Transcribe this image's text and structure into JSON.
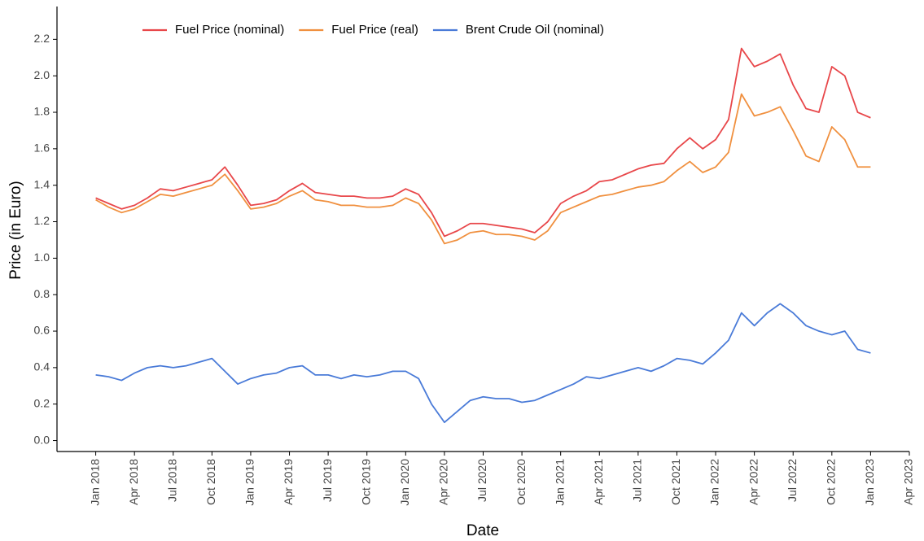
{
  "chart_data": {
    "type": "line",
    "x_label": "Date",
    "y_label": "Price (in Euro)",
    "x": [
      "2018-01",
      "2018-02",
      "2018-03",
      "2018-04",
      "2018-05",
      "2018-06",
      "2018-07",
      "2018-08",
      "2018-09",
      "2018-10",
      "2018-11",
      "2018-12",
      "2019-01",
      "2019-02",
      "2019-03",
      "2019-04",
      "2019-05",
      "2019-06",
      "2019-07",
      "2019-08",
      "2019-09",
      "2019-10",
      "2019-11",
      "2019-12",
      "2020-01",
      "2020-02",
      "2020-03",
      "2020-04",
      "2020-05",
      "2020-06",
      "2020-07",
      "2020-08",
      "2020-09",
      "2020-10",
      "2020-11",
      "2020-12",
      "2021-01",
      "2021-02",
      "2021-03",
      "2021-04",
      "2021-05",
      "2021-06",
      "2021-07",
      "2021-08",
      "2021-09",
      "2021-10",
      "2021-11",
      "2021-12",
      "2022-01",
      "2022-02",
      "2022-03",
      "2022-04",
      "2022-05",
      "2022-06",
      "2022-07",
      "2022-08",
      "2022-09",
      "2022-10",
      "2022-11",
      "2022-12",
      "2023-01"
    ],
    "series": [
      {
        "name": "Fuel Price (nominal)",
        "color": "#e8474a",
        "values": [
          1.33,
          1.3,
          1.27,
          1.29,
          1.33,
          1.38,
          1.37,
          1.39,
          1.41,
          1.43,
          1.5,
          1.4,
          1.29,
          1.3,
          1.32,
          1.37,
          1.41,
          1.36,
          1.35,
          1.34,
          1.34,
          1.33,
          1.33,
          1.34,
          1.38,
          1.35,
          1.25,
          1.12,
          1.15,
          1.19,
          1.19,
          1.18,
          1.17,
          1.16,
          1.14,
          1.2,
          1.3,
          1.34,
          1.37,
          1.42,
          1.43,
          1.46,
          1.49,
          1.51,
          1.52,
          1.6,
          1.66,
          1.6,
          1.65,
          1.76,
          2.15,
          2.05,
          2.08,
          2.12,
          1.95,
          1.82,
          1.8,
          2.05,
          2.0,
          1.8,
          1.77
        ]
      },
      {
        "name": "Fuel Price (real)",
        "color": "#f0903f",
        "values": [
          1.32,
          1.28,
          1.25,
          1.27,
          1.31,
          1.35,
          1.34,
          1.36,
          1.38,
          1.4,
          1.46,
          1.37,
          1.27,
          1.28,
          1.3,
          1.34,
          1.37,
          1.32,
          1.31,
          1.29,
          1.29,
          1.28,
          1.28,
          1.29,
          1.33,
          1.3,
          1.21,
          1.08,
          1.1,
          1.14,
          1.15,
          1.13,
          1.13,
          1.12,
          1.1,
          1.15,
          1.25,
          1.28,
          1.31,
          1.34,
          1.35,
          1.37,
          1.39,
          1.4,
          1.42,
          1.48,
          1.53,
          1.47,
          1.5,
          1.58,
          1.9,
          1.78,
          1.8,
          1.83,
          1.7,
          1.56,
          1.53,
          1.72,
          1.65,
          1.5,
          1.5
        ]
      },
      {
        "name": "Brent Crude Oil (nominal)",
        "color": "#4a7bd8",
        "values": [
          0.36,
          0.35,
          0.33,
          0.37,
          0.4,
          0.41,
          0.4,
          0.41,
          0.43,
          0.45,
          0.38,
          0.31,
          0.34,
          0.36,
          0.37,
          0.4,
          0.41,
          0.36,
          0.36,
          0.34,
          0.36,
          0.35,
          0.36,
          0.38,
          0.38,
          0.34,
          0.2,
          0.1,
          0.16,
          0.22,
          0.24,
          0.23,
          0.23,
          0.21,
          0.22,
          0.25,
          0.28,
          0.31,
          0.35,
          0.34,
          0.36,
          0.38,
          0.4,
          0.38,
          0.41,
          0.45,
          0.44,
          0.42,
          0.48,
          0.55,
          0.7,
          0.63,
          0.7,
          0.75,
          0.7,
          0.63,
          0.6,
          0.58,
          0.6,
          0.5,
          0.48
        ]
      }
    ],
    "xlim": [
      "2017-10",
      "2023-04"
    ],
    "xticks": [
      {
        "value": "2018-01",
        "label": "Jan 2018"
      },
      {
        "value": "2018-04",
        "label": "Apr 2018"
      },
      {
        "value": "2018-07",
        "label": "Jul 2018"
      },
      {
        "value": "2018-10",
        "label": "Oct 2018"
      },
      {
        "value": "2019-01",
        "label": "Jan 2019"
      },
      {
        "value": "2019-04",
        "label": "Apr 2019"
      },
      {
        "value": "2019-07",
        "label": "Jul 2019"
      },
      {
        "value": "2019-10",
        "label": "Oct 2019"
      },
      {
        "value": "2020-01",
        "label": "Jan 2020"
      },
      {
        "value": "2020-04",
        "label": "Apr 2020"
      },
      {
        "value": "2020-07",
        "label": "Jul 2020"
      },
      {
        "value": "2020-10",
        "label": "Oct 2020"
      },
      {
        "value": "2021-01",
        "label": "Jan 2021"
      },
      {
        "value": "2021-04",
        "label": "Apr 2021"
      },
      {
        "value": "2021-07",
        "label": "Jul 2021"
      },
      {
        "value": "2021-10",
        "label": "Oct 2021"
      },
      {
        "value": "2022-01",
        "label": "Jan 2022"
      },
      {
        "value": "2022-04",
        "label": "Apr 2022"
      },
      {
        "value": "2022-07",
        "label": "Jul 2022"
      },
      {
        "value": "2022-10",
        "label": "Oct 2022"
      },
      {
        "value": "2023-01",
        "label": "Jan 2023"
      },
      {
        "value": "2023-04",
        "label": "Apr 2023"
      }
    ],
    "ylim": [
      -0.06,
      2.38
    ],
    "yticks": [
      {
        "value": 0,
        "label": "0.0"
      },
      0.2,
      0.4,
      0.6,
      0.8,
      {
        "value": 1,
        "label": "1.0"
      },
      1.2,
      1.4,
      1.6,
      1.8,
      {
        "value": 2,
        "label": "2.0"
      },
      2.2
    ],
    "grid": false,
    "legend_position": "top-left"
  }
}
